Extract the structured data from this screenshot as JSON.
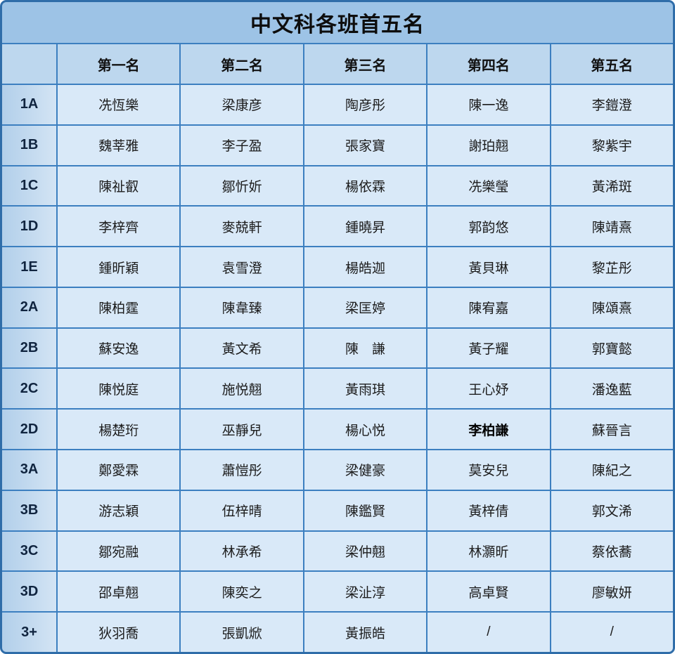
{
  "title": "中文科各班首五名",
  "table": {
    "corner_label": "",
    "columns": [
      "第一名",
      "第二名",
      "第三名",
      "第四名",
      "第五名"
    ],
    "rows": [
      {
        "class": "1A",
        "names": [
          "冼恆樂",
          "梁康彦",
          "陶彦彤",
          "陳一逸",
          "李鎧澄"
        ]
      },
      {
        "class": "1B",
        "names": [
          "魏莘雅",
          "李子盈",
          "張家寶",
          "謝珀翹",
          "黎紫宇"
        ]
      },
      {
        "class": "1C",
        "names": [
          "陳祉叡",
          "鄒忻妡",
          "楊依霖",
          "冼樂瑩",
          "黃浠斑"
        ]
      },
      {
        "class": "1D",
        "names": [
          "李梓齊",
          "麥兢軒",
          "鍾曉昇",
          "郭韵悠",
          "陳靖熹"
        ]
      },
      {
        "class": "1E",
        "names": [
          "鍾昕穎",
          "袁雪澄",
          "楊皓迦",
          "黃貝琳",
          "黎芷彤"
        ]
      },
      {
        "class": "2A",
        "names": [
          "陳柏霆",
          "陳韋臻",
          "梁匡婷",
          "陳宥嘉",
          "陳頌熹"
        ]
      },
      {
        "class": "2B",
        "names": [
          "蘇安逸",
          "黃文希",
          "陳　謙",
          "黃子耀",
          "郭寶懿"
        ]
      },
      {
        "class": "2C",
        "names": [
          "陳悦庭",
          "施悦翹",
          "黃雨琪",
          "王心妤",
          "潘逸藍"
        ]
      },
      {
        "class": "2D",
        "names": [
          "楊楚珩",
          "巫靜兒",
          "楊心悦",
          "李柏謙",
          "蘇晉言"
        ]
      },
      {
        "class": "3A",
        "names": [
          "鄭愛霖",
          "蕭愷彤",
          "梁健豪",
          "莫安兒",
          "陳紀之"
        ]
      },
      {
        "class": "3B",
        "names": [
          "游志穎",
          "伍梓晴",
          "陳鑑賢",
          "黃梓倩",
          "郭文浠"
        ]
      },
      {
        "class": "3C",
        "names": [
          "鄒宛融",
          "林承希",
          "梁仲翹",
          "林灝昕",
          "蔡依蕎"
        ]
      },
      {
        "class": "3D",
        "names": [
          "邵卓翹",
          "陳奕之",
          "梁沚淳",
          "高卓賢",
          "廖敏妍"
        ]
      },
      {
        "class": "3+",
        "names": [
          "狄羽喬",
          "張凱焮",
          "黃振皓",
          "/",
          "/"
        ]
      }
    ],
    "emphasis": [
      {
        "class": "2D",
        "col": 3
      }
    ],
    "empty_marker": "/"
  },
  "colors": {
    "title_bg": "#9dc3e6",
    "header_bg": "#bdd7ee",
    "label_bg_start": "#b2cfea",
    "label_bg_end": "#d3e4f4",
    "cell_bg": "#d9e9f8",
    "grid_line": "#3c7fc0",
    "outer_border": "#2f6da9",
    "text": "#1c1c1c"
  }
}
